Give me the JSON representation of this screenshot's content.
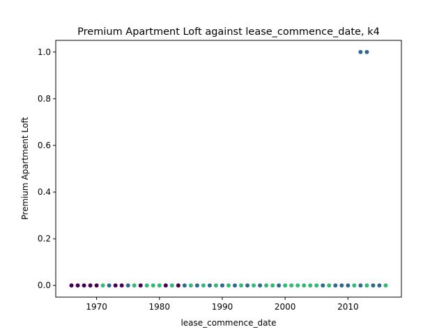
{
  "chart_data": {
    "type": "scatter",
    "title": "Premium Apartment Loft against lease_commence_date, k4",
    "xlabel": "lease_commence_date",
    "ylabel": "Premium Apartment Loft",
    "xlim": [
      1963.5,
      2018.5
    ],
    "ylim": [
      -0.05,
      1.05
    ],
    "xticks": [
      1970,
      1980,
      1990,
      2000,
      2010
    ],
    "yticks": [
      0.0,
      0.2,
      0.4,
      0.6,
      0.8,
      1.0
    ],
    "xtick_labels": [
      "1970",
      "1980",
      "1990",
      "2000",
      "2010"
    ],
    "ytick_labels": [
      "0.0",
      "0.2",
      "0.4",
      "0.6",
      "0.8",
      "1.0"
    ],
    "grid": false,
    "colors": {
      "dark_purple": "#440154",
      "blue": "#31688e",
      "green": "#35b779"
    },
    "points": [
      {
        "x": 1966,
        "y": 0,
        "color": "#440154"
      },
      {
        "x": 1967,
        "y": 0,
        "color": "#440154"
      },
      {
        "x": 1968,
        "y": 0,
        "color": "#440154"
      },
      {
        "x": 1969,
        "y": 0,
        "color": "#440154"
      },
      {
        "x": 1970,
        "y": 0,
        "color": "#440154"
      },
      {
        "x": 1971,
        "y": 0,
        "color": "#35b779"
      },
      {
        "x": 1972,
        "y": 0,
        "color": "#31688e"
      },
      {
        "x": 1973,
        "y": 0,
        "color": "#440154"
      },
      {
        "x": 1974,
        "y": 0,
        "color": "#440154"
      },
      {
        "x": 1975,
        "y": 0,
        "color": "#31688e"
      },
      {
        "x": 1976,
        "y": 0,
        "color": "#35b779"
      },
      {
        "x": 1977,
        "y": 0,
        "color": "#440154"
      },
      {
        "x": 1978,
        "y": 0,
        "color": "#35b779"
      },
      {
        "x": 1979,
        "y": 0,
        "color": "#35b779"
      },
      {
        "x": 1980,
        "y": 0,
        "color": "#35b779"
      },
      {
        "x": 1981,
        "y": 0,
        "color": "#440154"
      },
      {
        "x": 1982,
        "y": 0,
        "color": "#35b779"
      },
      {
        "x": 1983,
        "y": 0,
        "color": "#440154"
      },
      {
        "x": 1984,
        "y": 0,
        "color": "#31688e"
      },
      {
        "x": 1985,
        "y": 0,
        "color": "#35b779"
      },
      {
        "x": 1986,
        "y": 0,
        "color": "#31688e"
      },
      {
        "x": 1987,
        "y": 0,
        "color": "#35b779"
      },
      {
        "x": 1988,
        "y": 0,
        "color": "#31688e"
      },
      {
        "x": 1989,
        "y": 0,
        "color": "#35b779"
      },
      {
        "x": 1990,
        "y": 0,
        "color": "#31688e"
      },
      {
        "x": 1991,
        "y": 0,
        "color": "#35b779"
      },
      {
        "x": 1992,
        "y": 0,
        "color": "#31688e"
      },
      {
        "x": 1993,
        "y": 0,
        "color": "#35b779"
      },
      {
        "x": 1994,
        "y": 0,
        "color": "#31688e"
      },
      {
        "x": 1995,
        "y": 0,
        "color": "#35b779"
      },
      {
        "x": 1996,
        "y": 0,
        "color": "#31688e"
      },
      {
        "x": 1997,
        "y": 0,
        "color": "#35b779"
      },
      {
        "x": 1998,
        "y": 0,
        "color": "#35b779"
      },
      {
        "x": 1999,
        "y": 0,
        "color": "#31688e"
      },
      {
        "x": 2000,
        "y": 0,
        "color": "#35b779"
      },
      {
        "x": 2001,
        "y": 0,
        "color": "#35b779"
      },
      {
        "x": 2002,
        "y": 0,
        "color": "#35b779"
      },
      {
        "x": 2003,
        "y": 0,
        "color": "#35b779"
      },
      {
        "x": 2004,
        "y": 0,
        "color": "#35b779"
      },
      {
        "x": 2005,
        "y": 0,
        "color": "#35b779"
      },
      {
        "x": 2006,
        "y": 0,
        "color": "#31688e"
      },
      {
        "x": 2007,
        "y": 0,
        "color": "#35b779"
      },
      {
        "x": 2008,
        "y": 0,
        "color": "#31688e"
      },
      {
        "x": 2009,
        "y": 0,
        "color": "#31688e"
      },
      {
        "x": 2010,
        "y": 0,
        "color": "#31688e"
      },
      {
        "x": 2011,
        "y": 0,
        "color": "#35b779"
      },
      {
        "x": 2012,
        "y": 0,
        "color": "#31688e"
      },
      {
        "x": 2013,
        "y": 0,
        "color": "#35b779"
      },
      {
        "x": 2014,
        "y": 0,
        "color": "#31688e"
      },
      {
        "x": 2015,
        "y": 0,
        "color": "#31688e"
      },
      {
        "x": 2016,
        "y": 0,
        "color": "#35b779"
      },
      {
        "x": 2012,
        "y": 1,
        "color": "#31688e"
      },
      {
        "x": 2013,
        "y": 1,
        "color": "#31688e"
      }
    ]
  }
}
